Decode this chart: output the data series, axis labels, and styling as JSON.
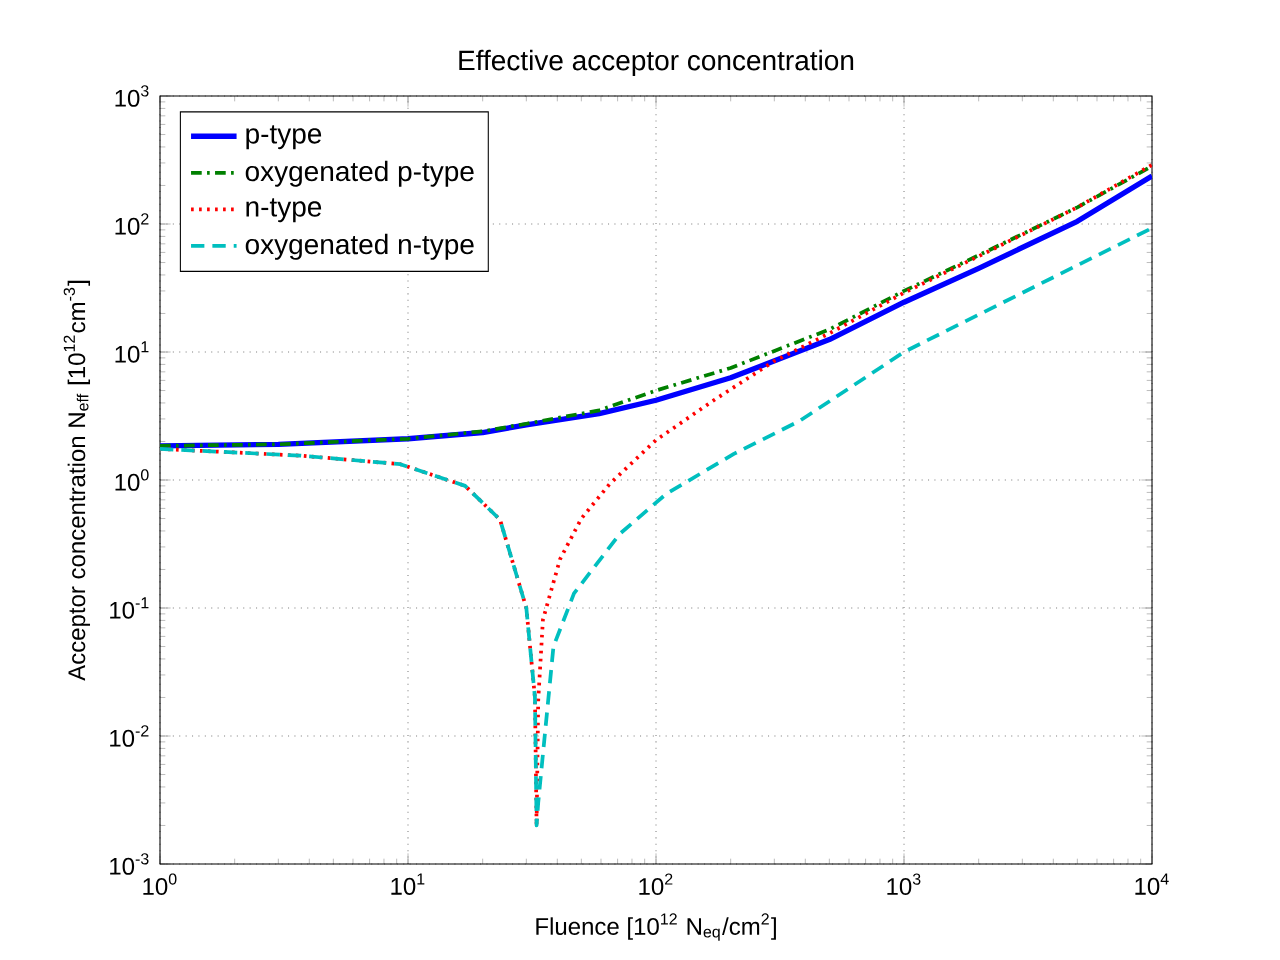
{
  "chart_data": {
    "type": "line",
    "title": "Effective acceptor concentration",
    "xlabel": "Fluence [10$^{12}$ N$_{eq}$/cm$^{2}$]",
    "ylabel": "Acceptor concentration N$_{eff}$    [10$^{12}$cm$^{-3}$]",
    "log": "xy",
    "grid": true,
    "legend": "top left",
    "xlim": [
      1,
      10000
    ],
    "ylim": [
      0.001,
      1000
    ],
    "xticks": [
      {
        "value": 1,
        "label": "10$^{0}$"
      },
      {
        "value": 10,
        "label": "10$^{1}$"
      },
      {
        "value": 100,
        "label": "10$^{2}$"
      },
      {
        "value": 1000,
        "label": "10$^{3}$"
      },
      {
        "value": 10000,
        "label": "10$^{4}$"
      }
    ],
    "yticks": [
      {
        "value": 0.001,
        "label": "10$^{-3}$"
      },
      {
        "value": 0.01,
        "label": "10$^{-2}$"
      },
      {
        "value": 0.1,
        "label": "10$^{-1}$"
      },
      {
        "value": 1,
        "label": "10$^{0}$"
      },
      {
        "value": 10,
        "label": "10$^{1}$"
      },
      {
        "value": 100,
        "label": "10$^{2}$"
      },
      {
        "value": 1000,
        "label": "10$^{3}$"
      }
    ],
    "series": [
      {
        "name": "p-type",
        "color": "#0000ff",
        "line_style": "solid",
        "x": [
          1,
          3,
          10,
          20,
          30,
          59,
          100,
          200,
          500,
          1000,
          2000,
          5000,
          10000
        ],
        "values": [
          1.85,
          1.9,
          2.1,
          2.35,
          2.7,
          3.3,
          4.2,
          6.3,
          12.5,
          24.5,
          45,
          105,
          237
        ]
      },
      {
        "name": "oxygenated p-type",
        "color": "#008000",
        "line_style": "dashdot",
        "x": [
          1,
          3,
          10,
          20,
          30,
          59,
          100,
          200,
          500,
          1000,
          2000,
          5000,
          10000
        ],
        "values": [
          1.85,
          1.9,
          2.1,
          2.4,
          2.75,
          3.5,
          5.0,
          7.5,
          15,
          30,
          57,
          135,
          283
        ]
      },
      {
        "name": "n-type",
        "color": "#ff0000",
        "line_style": "dotted",
        "x": [
          1,
          3.7,
          9.3,
          17,
          23.5,
          30,
          32.5,
          33,
          33.5,
          35,
          41,
          50,
          65,
          100,
          171,
          300,
          500,
          1000,
          2000,
          5000,
          10000
        ],
        "values": [
          1.75,
          1.55,
          1.33,
          0.9,
          0.49,
          0.1,
          0.02,
          0.002,
          0.019,
          0.081,
          0.24,
          0.5,
          0.93,
          2.05,
          4.2,
          8.5,
          14,
          29,
          56,
          135,
          290
        ]
      },
      {
        "name": "oxygenated n-type",
        "color": "#00bfbf",
        "line_style": "dashed",
        "x": [
          1,
          3.7,
          9.3,
          17,
          23.5,
          30,
          32.5,
          33,
          33.5,
          35,
          38.6,
          46.7,
          71.5,
          110,
          206,
          380,
          1000,
          3000,
          10000
        ],
        "values": [
          1.75,
          1.55,
          1.33,
          0.9,
          0.49,
          0.1,
          0.02,
          0.002,
          0.003,
          0.0072,
          0.05,
          0.13,
          0.38,
          0.78,
          1.6,
          2.9,
          10,
          29,
          93
        ]
      }
    ]
  }
}
